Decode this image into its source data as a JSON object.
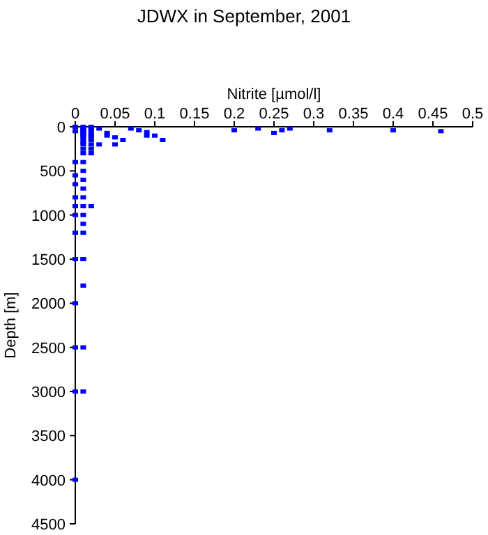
{
  "chart_data": {
    "type": "scatter",
    "title": "JDWX in September, 2001",
    "xlabel": "Nitrite [µmol/l]",
    "ylabel": "Depth [m]",
    "xlim": [
      0,
      0.5
    ],
    "xticks": [
      0,
      0.05,
      0.1,
      0.15,
      0.2,
      0.25,
      0.3,
      0.35,
      0.4,
      0.45,
      0.5
    ],
    "ylim": [
      4500,
      0
    ],
    "yticks": [
      0,
      500,
      1000,
      1500,
      2000,
      2500,
      3000,
      3500,
      4000,
      4500
    ],
    "marker": "square",
    "series": [
      {
        "color": "#0000ff",
        "x": [
          0,
          0.01,
          0.02,
          0.03,
          0.04,
          0.04,
          0.05,
          0.05,
          0.06,
          0.07,
          0.08,
          0.09,
          0.09,
          0.1,
          0.11,
          0.2,
          0.23,
          0.25,
          0.26,
          0.27,
          0.32,
          0.4,
          0.46,
          0.01,
          0.01,
          0.01,
          0.01,
          0.01,
          0.01,
          0.01,
          0.01,
          0.01,
          0.01,
          0.01,
          0.01,
          0.01,
          0.01,
          0.01,
          0.01,
          0.01,
          0.01,
          0.01,
          0.01,
          0.01,
          0.01,
          0.01,
          0.02,
          0.02,
          0.02,
          0.02,
          0.02,
          0.02,
          0.02,
          0.02,
          0.02,
          0.02,
          0.03,
          0,
          0,
          0,
          0,
          0,
          0,
          0,
          0,
          0,
          0,
          0,
          0,
          0,
          0.01,
          0.01,
          0.01
        ],
        "values": [
          0,
          0,
          0,
          20,
          70,
          100,
          120,
          200,
          150,
          20,
          40,
          60,
          100,
          100,
          150,
          40,
          20,
          70,
          40,
          20,
          40,
          40,
          50,
          20,
          40,
          60,
          80,
          100,
          120,
          150,
          180,
          200,
          250,
          300,
          400,
          500,
          600,
          700,
          800,
          900,
          1000,
          1100,
          1200,
          1500,
          1800,
          2500,
          20,
          50,
          80,
          100,
          120,
          150,
          200,
          250,
          300,
          900,
          200,
          50,
          400,
          550,
          650,
          800,
          900,
          1000,
          1200,
          1500,
          2000,
          2500,
          3000,
          4000,
          3000,
          1500,
          50
        ]
      }
    ]
  }
}
